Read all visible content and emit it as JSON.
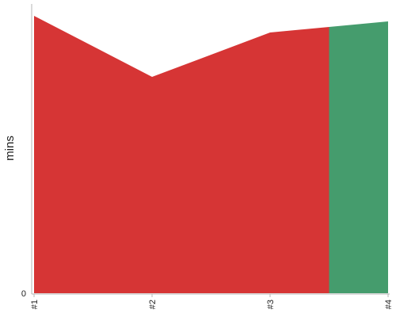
{
  "chart_data": {
    "type": "area",
    "ylabel": "mins",
    "x": [
      "#1",
      "#2",
      "#3",
      "#4"
    ],
    "y_ticks": [
      "0"
    ],
    "ylim": [
      0,
      100
    ],
    "series": [
      {
        "color": "#d63535",
        "points": [
          [
            1,
            100
          ],
          [
            2,
            78
          ],
          [
            3,
            94
          ],
          [
            3.5,
            96
          ]
        ]
      },
      {
        "color": "#459c6d",
        "points": [
          [
            3.5,
            96
          ],
          [
            4,
            98
          ]
        ]
      }
    ]
  }
}
